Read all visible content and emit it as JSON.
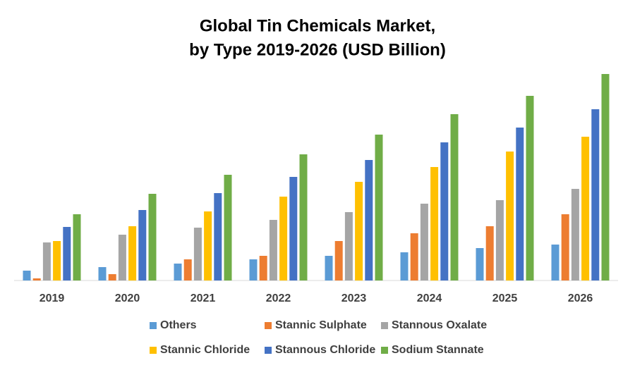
{
  "chart_data": {
    "type": "bar",
    "title": [
      "Global Tin Chemicals Market,",
      "by Type 2019-2026 (USD Billion)"
    ],
    "categories": [
      "2019",
      "2020",
      "2021",
      "2022",
      "2023",
      "2024",
      "2025",
      "2026"
    ],
    "series": [
      {
        "name": "Others",
        "color": "#5b9bd5",
        "values": [
          14,
          19,
          24,
          30,
          35,
          40,
          46,
          51
        ]
      },
      {
        "name": "Stannic Sulphate",
        "color": "#ed7d31",
        "values": [
          3,
          9,
          30,
          35,
          56,
          67,
          77,
          94
        ]
      },
      {
        "name": "Stannous Oxalate",
        "color": "#a5a5a5",
        "values": [
          54,
          65,
          75,
          86,
          97,
          109,
          114,
          130
        ]
      },
      {
        "name": "Stannic Chloride",
        "color": "#ffc000",
        "values": [
          56,
          77,
          98,
          119,
          140,
          161,
          183,
          204
        ]
      },
      {
        "name": "Stannous Chloride",
        "color": "#4472c4",
        "values": [
          76,
          100,
          124,
          147,
          171,
          196,
          217,
          243
        ]
      },
      {
        "name": "Sodium Stannate",
        "color": "#70ad47",
        "values": [
          94,
          123,
          150,
          179,
          207,
          236,
          262,
          293
        ]
      }
    ],
    "ylim": [
      0,
      300
    ]
  }
}
